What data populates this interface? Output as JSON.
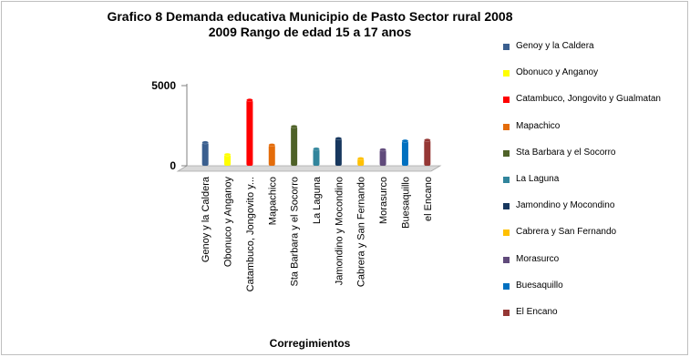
{
  "chart_data": {
    "type": "bar",
    "title_line1": "Grafico 8 Demanda  educativa Municipio de Pasto    Sector rural 2008",
    "title_line2": "2009 Rango de edad 15 a 17 anos",
    "xlabel": "Corregimientos",
    "ylabel": "",
    "ylim": [
      0,
      5000
    ],
    "yticks": [
      0,
      5000
    ],
    "grid": false,
    "legend_position": "right",
    "categories": [
      "Genoy y la Caldera",
      "Obonuco y Anganoy",
      "Catambuco, Jongovito y...",
      "Mapachico",
      "Sta Barbara y el Socorro",
      "La Laguna",
      "Jamondino y Mocondino",
      "Cabrera y San Fernando",
      "Morasurco",
      "Buesaquillo",
      "el Encano"
    ],
    "legend_labels": [
      "Genoy y la Caldera",
      "Obonuco y Anganoy",
      "Catambuco, Jongovito y Gualmatan",
      "Mapachico",
      "Sta Barbara y el Socorro",
      "La Laguna",
      "Jamondino y Mocondino",
      "Cabrera y San Fernando",
      "Morasurco",
      "Buesaquillo",
      "El Encano"
    ],
    "values": [
      1450,
      700,
      4100,
      1300,
      2450,
      1050,
      1700,
      450,
      1000,
      1550,
      1600
    ],
    "colors": [
      "#3a5f8f",
      "#ffff00",
      "#ff0000",
      "#e46c0a",
      "#4f6228",
      "#31859c",
      "#17375e",
      "#ffc000",
      "#604a7b",
      "#0070c0",
      "#953735"
    ]
  }
}
